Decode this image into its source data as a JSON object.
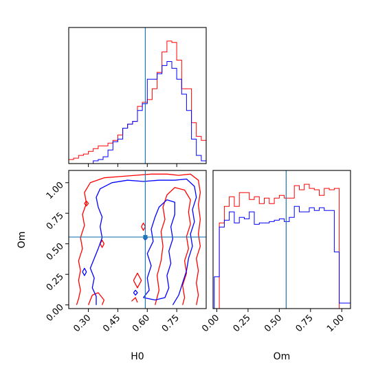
{
  "chart_data": {
    "type": "corner",
    "parameters": [
      "H0",
      "Om"
    ],
    "truth": {
      "H0": 0.59,
      "Om": 0.555
    },
    "colors": {
      "red": "#ff0000",
      "blue": "#0000ff",
      "truth": "#1f77b4"
    },
    "panels": [
      {
        "id": "hist-H0",
        "type": "step-histogram",
        "xlim": [
          0.2,
          0.9
        ],
        "xticks": [
          0.3,
          0.45,
          0.6,
          0.75
        ],
        "xtick_labels_shown": false,
        "yticks_shown": false,
        "bin_edges": [
          0.2,
          0.225,
          0.25,
          0.275,
          0.3,
          0.325,
          0.35,
          0.375,
          0.4,
          0.425,
          0.45,
          0.475,
          0.5,
          0.525,
          0.55,
          0.575,
          0.6,
          0.625,
          0.65,
          0.675,
          0.7,
          0.725,
          0.75,
          0.775,
          0.8,
          0.825,
          0.85,
          0.875,
          0.9
        ],
        "series": [
          {
            "name": "",
            "color": "red",
            "counts": [
              3,
              4,
              6,
              7,
              9,
              11,
              13,
              13,
              15,
              17,
              21,
              26,
              29,
              31,
              42,
              45,
              47,
              55,
              67,
              82,
              90,
              89,
              76,
              55,
              55,
              30,
              20,
              17
            ]
          },
          {
            "name": "",
            "color": "blue",
            "counts": [
              0,
              0,
              0,
              0,
              0,
              2,
              3,
              5,
              10,
              16,
              18,
              26,
              29,
              31,
              39,
              44,
              62,
              62,
              66,
              72,
              75,
              70,
              62,
              51,
              39,
              18,
              6,
              2
            ]
          }
        ],
        "ylim": [
          0,
          100
        ]
      },
      {
        "id": "contour-H0-Om",
        "type": "contour",
        "xlabel": "H0",
        "ylabel": "Om",
        "xlim": [
          0.2,
          0.9
        ],
        "ylim": [
          -0.03,
          1.1
        ],
        "xticks": [
          0.3,
          0.45,
          0.6,
          0.75
        ],
        "xtick_labels": [
          "0.30",
          "0.45",
          "0.60",
          "0.75"
        ],
        "yticks": [
          0.0,
          0.25,
          0.5,
          0.75,
          1.0
        ],
        "ytick_labels": [
          "0.00",
          "0.25",
          "0.50",
          "0.75",
          "1.00"
        ],
        "contours": [
          {
            "color": "red",
            "points": [
              [
                0.24,
                0.0
              ],
              [
                0.25,
                0.05
              ],
              [
                0.26,
                0.12
              ],
              [
                0.25,
                0.2
              ],
              [
                0.26,
                0.28
              ],
              [
                0.25,
                0.36
              ],
              [
                0.27,
                0.46
              ],
              [
                0.26,
                0.55
              ],
              [
                0.28,
                0.65
              ],
              [
                0.27,
                0.74
              ],
              [
                0.29,
                0.83
              ],
              [
                0.28,
                0.92
              ],
              [
                0.31,
                1.0
              ],
              [
                0.38,
                1.04
              ],
              [
                0.46,
                1.05
              ],
              [
                0.54,
                1.06
              ],
              [
                0.62,
                1.07
              ],
              [
                0.7,
                1.07
              ],
              [
                0.76,
                1.06
              ],
              [
                0.82,
                1.07
              ],
              [
                0.86,
                1.02
              ],
              [
                0.87,
                0.92
              ],
              [
                0.86,
                0.82
              ],
              [
                0.87,
                0.7
              ],
              [
                0.86,
                0.58
              ],
              [
                0.87,
                0.48
              ],
              [
                0.85,
                0.38
              ],
              [
                0.86,
                0.28
              ],
              [
                0.85,
                0.18
              ],
              [
                0.86,
                0.08
              ],
              [
                0.85,
                0.0
              ]
            ]
          },
          {
            "color": "red",
            "points": [
              [
                0.3,
                0.0
              ],
              [
                0.32,
                0.08
              ],
              [
                0.35,
                0.1
              ],
              [
                0.38,
                0.04
              ],
              [
                0.37,
                0.0
              ]
            ]
          },
          {
            "color": "red",
            "points": [
              [
                0.64,
                0.0
              ],
              [
                0.66,
                0.12
              ],
              [
                0.65,
                0.24
              ],
              [
                0.67,
                0.36
              ],
              [
                0.68,
                0.48
              ],
              [
                0.67,
                0.6
              ],
              [
                0.69,
                0.7
              ],
              [
                0.68,
                0.8
              ],
              [
                0.7,
                0.9
              ],
              [
                0.74,
                0.96
              ],
              [
                0.79,
                0.94
              ],
              [
                0.82,
                0.86
              ],
              [
                0.81,
                0.76
              ],
              [
                0.82,
                0.66
              ],
              [
                0.8,
                0.56
              ],
              [
                0.81,
                0.46
              ],
              [
                0.79,
                0.36
              ],
              [
                0.8,
                0.26
              ],
              [
                0.78,
                0.16
              ],
              [
                0.79,
                0.06
              ],
              [
                0.78,
                0.0
              ]
            ]
          },
          {
            "color": "red",
            "points": [
              [
                0.53,
                0.2
              ],
              [
                0.55,
                0.26
              ],
              [
                0.57,
                0.2
              ],
              [
                0.55,
                0.14
              ],
              [
                0.53,
                0.2
              ]
            ]
          },
          {
            "color": "red",
            "points": [
              [
                0.52,
                0.03
              ],
              [
                0.54,
                0.06
              ],
              [
                0.55,
                0.02
              ]
            ]
          },
          {
            "color": "red",
            "points": [
              [
                0.36,
                0.5
              ],
              [
                0.37,
                0.53
              ],
              [
                0.38,
                0.5
              ],
              [
                0.37,
                0.47
              ],
              [
                0.36,
                0.5
              ]
            ]
          },
          {
            "color": "red",
            "points": [
              [
                0.28,
                0.83
              ],
              [
                0.29,
                0.85
              ],
              [
                0.3,
                0.83
              ],
              [
                0.29,
                0.81
              ],
              [
                0.28,
                0.83
              ]
            ]
          },
          {
            "color": "red",
            "points": [
              [
                0.57,
                0.64
              ],
              [
                0.58,
                0.67
              ],
              [
                0.59,
                0.64
              ],
              [
                0.58,
                0.61
              ],
              [
                0.57,
                0.64
              ]
            ]
          },
          {
            "color": "blue",
            "points": [
              [
                0.34,
                0.0
              ],
              [
                0.34,
                0.07
              ],
              [
                0.32,
                0.14
              ],
              [
                0.33,
                0.22
              ],
              [
                0.31,
                0.3
              ],
              [
                0.33,
                0.38
              ],
              [
                0.35,
                0.46
              ],
              [
                0.37,
                0.55
              ],
              [
                0.36,
                0.64
              ],
              [
                0.37,
                0.72
              ],
              [
                0.35,
                0.8
              ],
              [
                0.34,
                0.88
              ],
              [
                0.36,
                0.95
              ],
              [
                0.42,
                1.0
              ],
              [
                0.5,
                1.02
              ],
              [
                0.58,
                1.01
              ],
              [
                0.66,
                1.02
              ],
              [
                0.74,
                1.02
              ],
              [
                0.8,
                1.03
              ],
              [
                0.84,
                0.97
              ],
              [
                0.85,
                0.88
              ],
              [
                0.83,
                0.78
              ],
              [
                0.84,
                0.68
              ],
              [
                0.82,
                0.58
              ],
              [
                0.83,
                0.48
              ],
              [
                0.81,
                0.38
              ],
              [
                0.8,
                0.28
              ],
              [
                0.78,
                0.18
              ],
              [
                0.76,
                0.08
              ],
              [
                0.73,
                0.0
              ]
            ]
          },
          {
            "color": "blue",
            "points": [
              [
                0.58,
                0.06
              ],
              [
                0.61,
                0.12
              ],
              [
                0.6,
                0.22
              ],
              [
                0.62,
                0.32
              ],
              [
                0.6,
                0.42
              ],
              [
                0.63,
                0.52
              ],
              [
                0.62,
                0.62
              ],
              [
                0.64,
                0.72
              ],
              [
                0.66,
                0.8
              ],
              [
                0.7,
                0.86
              ],
              [
                0.74,
                0.84
              ],
              [
                0.74,
                0.74
              ],
              [
                0.72,
                0.64
              ],
              [
                0.73,
                0.54
              ],
              [
                0.71,
                0.44
              ],
              [
                0.72,
                0.34
              ],
              [
                0.7,
                0.24
              ],
              [
                0.71,
                0.14
              ],
              [
                0.69,
                0.06
              ],
              [
                0.64,
                0.04
              ],
              [
                0.58,
                0.06
              ]
            ]
          },
          {
            "color": "blue",
            "points": [
              [
                0.27,
                0.27
              ],
              [
                0.28,
                0.3
              ],
              [
                0.29,
                0.27
              ],
              [
                0.28,
                0.24
              ],
              [
                0.27,
                0.27
              ]
            ]
          },
          {
            "color": "blue",
            "points": [
              [
                0.58,
                0.55
              ],
              [
                0.59,
                0.57
              ],
              [
                0.6,
                0.55
              ],
              [
                0.59,
                0.53
              ],
              [
                0.58,
                0.55
              ]
            ]
          },
          {
            "color": "blue",
            "points": [
              [
                0.53,
                0.1
              ],
              [
                0.54,
                0.12
              ],
              [
                0.55,
                0.1
              ],
              [
                0.54,
                0.08
              ],
              [
                0.53,
                0.1
              ]
            ]
          }
        ]
      },
      {
        "id": "hist-Om",
        "type": "step-histogram",
        "xlabel": "Om",
        "xlim": [
          -0.03,
          1.07
        ],
        "xticks": [
          0.0,
          0.25,
          0.5,
          0.75,
          1.0
        ],
        "xtick_labels": [
          "0.00",
          "0.25",
          "0.50",
          "0.75",
          "1.00"
        ],
        "yticks_shown": false,
        "bin_edges": [
          -0.02,
          0.02,
          0.06,
          0.1,
          0.14,
          0.18,
          0.22,
          0.26,
          0.3,
          0.34,
          0.38,
          0.42,
          0.46,
          0.5,
          0.54,
          0.58,
          0.62,
          0.66,
          0.7,
          0.74,
          0.78,
          0.82,
          0.86,
          0.9,
          0.94,
          0.98,
          1.02,
          1.07
        ],
        "series": [
          {
            "name": "",
            "color": "red",
            "counts": [
              0,
              62,
              74,
              81,
              74,
              84,
              84,
              79,
              81,
              76,
              80,
              76,
              80,
              82,
              80,
              80,
              89,
              86,
              90,
              87,
              86,
              82,
              87,
              86,
              87,
              0,
              0
            ]
          },
          {
            "name": "",
            "color": "blue",
            "counts": [
              23,
              59,
              64,
              70,
              62,
              66,
              65,
              70,
              61,
              62,
              62,
              63,
              64,
              65,
              63,
              66,
              74,
              70,
              70,
              73,
              71,
              73,
              71,
              71,
              41,
              4,
              4
            ]
          }
        ],
        "ylim": [
          0,
          100
        ]
      }
    ]
  }
}
